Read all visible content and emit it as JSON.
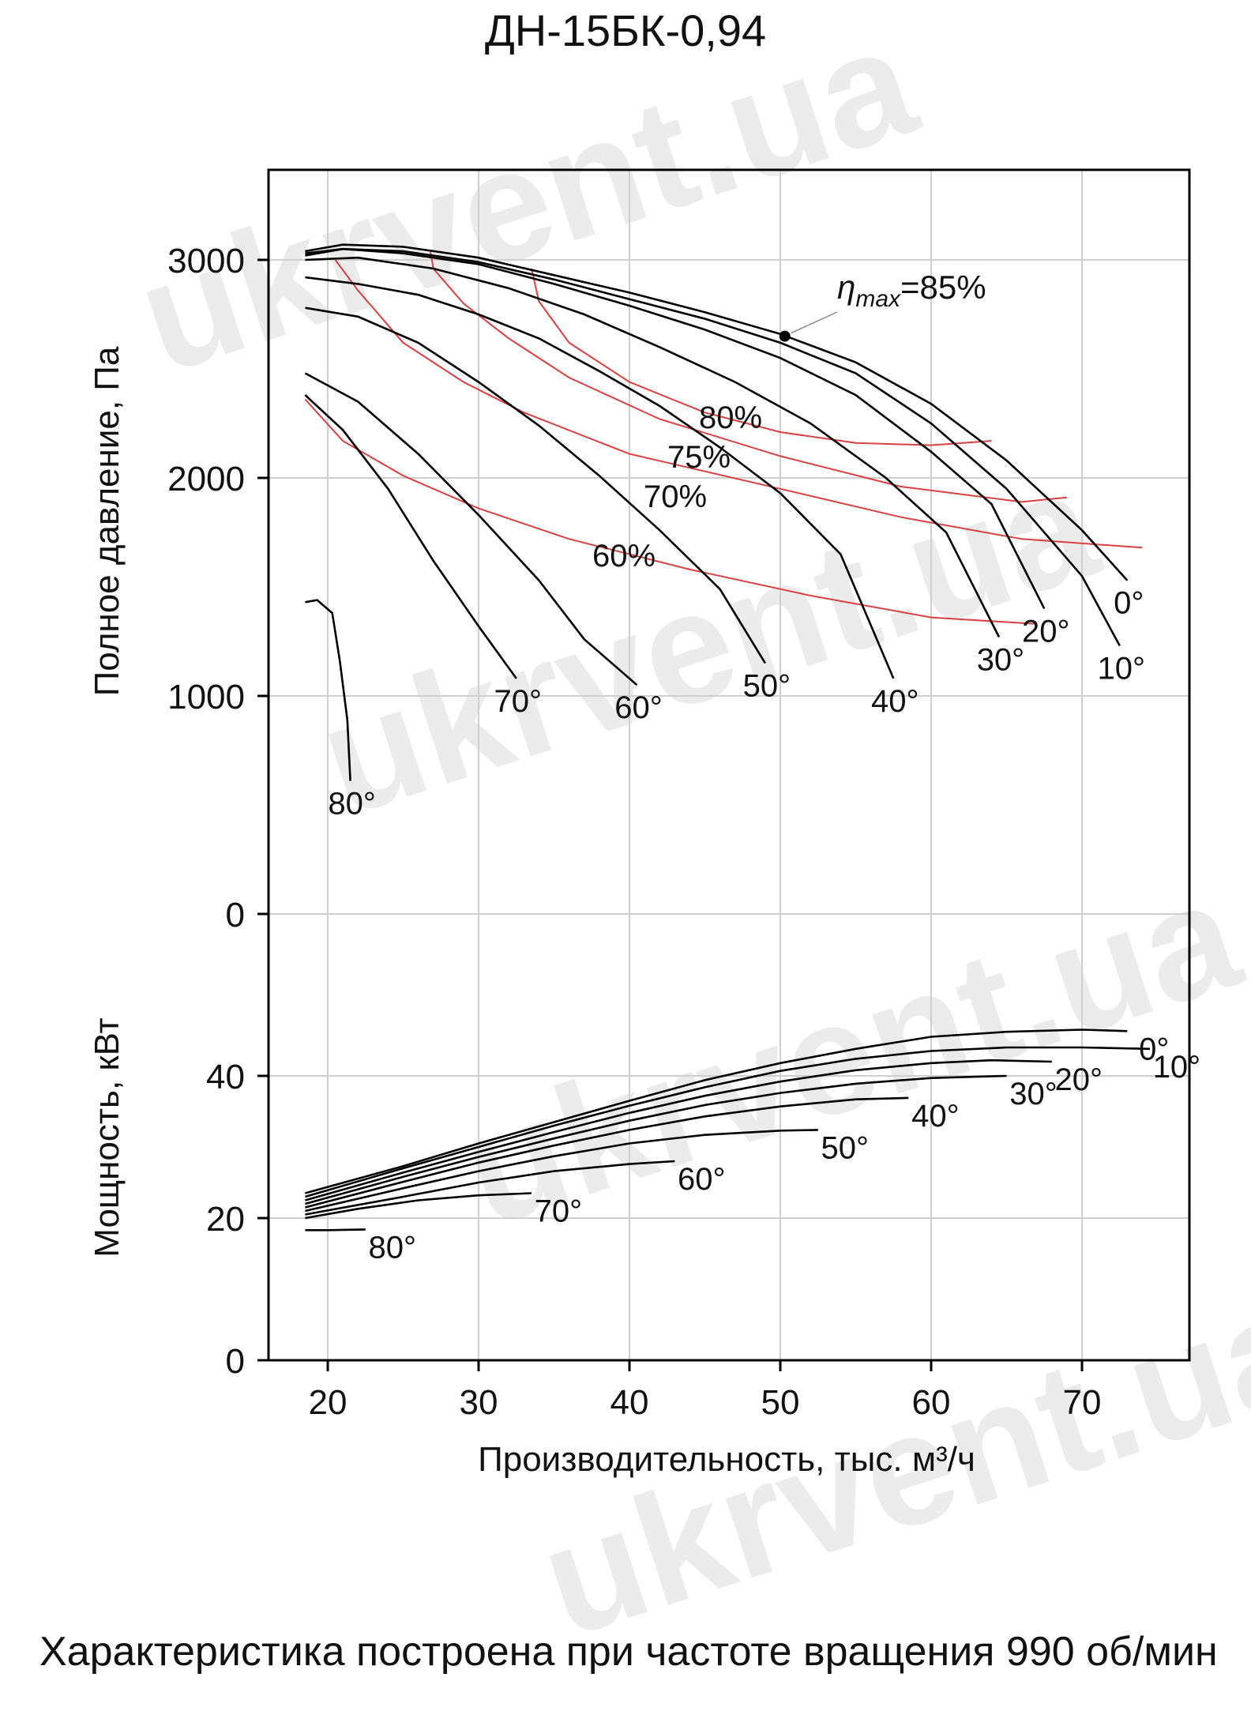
{
  "title": "ДН-15БК-0,94",
  "caption": "Характеристика построена при частоте вращения 990 об/мин",
  "watermark": "ukrvent.ua",
  "colors": {
    "curve": "#000000",
    "efficiency": "#d94040",
    "grid": "#cfcfcf",
    "watermark": "#ebebeb"
  },
  "chart_data": [
    {
      "type": "line",
      "title": "",
      "xlabel": "Производительность, тыс. м³/ч",
      "ylabel": "Полное давление, Па",
      "xlim": [
        15,
        77
      ],
      "ylim": [
        0,
        3400
      ],
      "xticks": [
        20,
        30,
        40,
        50,
        60,
        70
      ],
      "yticks": [
        0,
        1000,
        2000,
        3000
      ],
      "grid": true,
      "annotation": {
        "label": "ηmax=85%",
        "text": "=85%",
        "x": 50.3,
        "y": 2650
      },
      "series": [
        {
          "name": "0°",
          "points": [
            [
              18.5,
              3040
            ],
            [
              21,
              3070
            ],
            [
              25,
              3060
            ],
            [
              30,
              3010
            ],
            [
              35,
              2930
            ],
            [
              40,
              2850
            ],
            [
              45,
              2760
            ],
            [
              50,
              2660
            ],
            [
              55,
              2530
            ],
            [
              60,
              2340
            ],
            [
              65,
              2080
            ],
            [
              70,
              1760
            ],
            [
              73,
              1530
            ]
          ]
        },
        {
          "name": "10°",
          "points": [
            [
              18.5,
              3020
            ],
            [
              21,
              3050
            ],
            [
              25,
              3040
            ],
            [
              30,
              2990
            ],
            [
              35,
              2910
            ],
            [
              40,
              2820
            ],
            [
              45,
              2730
            ],
            [
              50,
              2620
            ],
            [
              55,
              2480
            ],
            [
              60,
              2250
            ],
            [
              65,
              1950
            ],
            [
              70,
              1550
            ],
            [
              72.5,
              1230
            ]
          ]
        },
        {
          "name": "20°",
          "points": [
            [
              18.5,
              3030
            ],
            [
              21,
              3050
            ],
            [
              25,
              3030
            ],
            [
              30,
              2980
            ],
            [
              35,
              2890
            ],
            [
              40,
              2790
            ],
            [
              45,
              2680
            ],
            [
              50,
              2550
            ],
            [
              55,
              2380
            ],
            [
              60,
              2120
            ],
            [
              64,
              1880
            ],
            [
              67.5,
              1400
            ]
          ]
        },
        {
          "name": "30°",
          "points": [
            [
              18.5,
              3000
            ],
            [
              22,
              3010
            ],
            [
              27,
              2960
            ],
            [
              32,
              2870
            ],
            [
              37,
              2750
            ],
            [
              42,
              2600
            ],
            [
              47,
              2440
            ],
            [
              52,
              2250
            ],
            [
              57,
              2000
            ],
            [
              61,
              1750
            ],
            [
              64.5,
              1270
            ]
          ]
        },
        {
          "name": "40°",
          "points": [
            [
              18.5,
              2920
            ],
            [
              22,
              2890
            ],
            [
              26,
              2840
            ],
            [
              30,
              2750
            ],
            [
              34,
              2640
            ],
            [
              38,
              2490
            ],
            [
              42,
              2330
            ],
            [
              46,
              2140
            ],
            [
              50,
              1930
            ],
            [
              54,
              1650
            ],
            [
              57.5,
              1080
            ]
          ]
        },
        {
          "name": "50°",
          "points": [
            [
              18.5,
              2780
            ],
            [
              22,
              2740
            ],
            [
              26,
              2620
            ],
            [
              30,
              2440
            ],
            [
              34,
              2240
            ],
            [
              38,
              2010
            ],
            [
              42,
              1760
            ],
            [
              46,
              1490
            ],
            [
              49,
              1150
            ]
          ]
        },
        {
          "name": "60°",
          "points": [
            [
              18.5,
              2480
            ],
            [
              22,
              2350
            ],
            [
              26,
              2110
            ],
            [
              30,
              1830
            ],
            [
              34,
              1530
            ],
            [
              37,
              1260
            ],
            [
              40.5,
              1050
            ]
          ]
        },
        {
          "name": "70°",
          "points": [
            [
              18.5,
              2380
            ],
            [
              21,
              2220
            ],
            [
              24,
              1950
            ],
            [
              27,
              1620
            ],
            [
              30,
              1320
            ],
            [
              32.5,
              1080
            ]
          ]
        },
        {
          "name": "80°",
          "points": [
            [
              18.5,
              1430
            ],
            [
              19.3,
              1440
            ],
            [
              20.3,
              1380
            ],
            [
              20.8,
              1160
            ],
            [
              21.3,
              890
            ],
            [
              21.5,
              610
            ]
          ]
        }
      ],
      "efficiency_lines": [
        {
          "name": "80%",
          "points": [
            [
              33.5,
              2960
            ],
            [
              34,
              2810
            ],
            [
              36,
              2620
            ],
            [
              40,
              2440
            ],
            [
              45,
              2300
            ],
            [
              50,
              2210
            ],
            [
              55,
              2160
            ],
            [
              60,
              2150
            ],
            [
              64,
              2170
            ]
          ]
        },
        {
          "name": "75%",
          "points": [
            [
              26.8,
              3040
            ],
            [
              27,
              2960
            ],
            [
              29,
              2800
            ],
            [
              32,
              2640
            ],
            [
              36,
              2460
            ],
            [
              42,
              2270
            ],
            [
              50,
              2100
            ],
            [
              58,
              1960
            ],
            [
              66,
              1890
            ],
            [
              69,
              1910
            ]
          ]
        },
        {
          "name": "70%",
          "points": [
            [
              20.5,
              3000
            ],
            [
              22,
              2860
            ],
            [
              25,
              2620
            ],
            [
              29,
              2440
            ],
            [
              33,
              2300
            ],
            [
              40,
              2110
            ],
            [
              50,
              1950
            ],
            [
              58,
              1820
            ],
            [
              66,
              1720
            ],
            [
              74,
              1680
            ]
          ]
        },
        {
          "name": "60%",
          "points": [
            [
              18.5,
              2360
            ],
            [
              21,
              2170
            ],
            [
              25,
              2010
            ],
            [
              30,
              1860
            ],
            [
              36,
              1720
            ],
            [
              44,
              1580
            ],
            [
              52,
              1460
            ],
            [
              60,
              1360
            ],
            [
              67,
              1330
            ]
          ]
        }
      ]
    },
    {
      "type": "line",
      "title": "",
      "xlabel": "Производительность, тыс. м³/ч",
      "ylabel": "Мощность, кВт",
      "xlim": [
        15,
        77
      ],
      "ylim": [
        0,
        52
      ],
      "yticks": [
        0,
        20,
        40
      ],
      "grid": true,
      "series": [
        {
          "name": "0°",
          "points": [
            [
              18.5,
              23.5
            ],
            [
              25,
              27.3
            ],
            [
              30,
              30.5
            ],
            [
              35,
              33.5
            ],
            [
              40,
              36.5
            ],
            [
              45,
              39.4
            ],
            [
              50,
              41.8
            ],
            [
              55,
              43.8
            ],
            [
              60,
              45.5
            ],
            [
              65,
              46.2
            ],
            [
              70,
              46.5
            ],
            [
              73,
              46.3
            ]
          ]
        },
        {
          "name": "10°",
          "points": [
            [
              18.5,
              23
            ],
            [
              25,
              27
            ],
            [
              30,
              30
            ],
            [
              35,
              33
            ],
            [
              40,
              35.8
            ],
            [
              45,
              38.4
            ],
            [
              50,
              40.7
            ],
            [
              55,
              42.4
            ],
            [
              60,
              43.5
            ],
            [
              65,
              44
            ],
            [
              70,
              44
            ],
            [
              74.5,
              43.8
            ]
          ]
        },
        {
          "name": "20°",
          "points": [
            [
              18.5,
              22.5
            ],
            [
              25,
              26.4
            ],
            [
              30,
              29.3
            ],
            [
              35,
              32.1
            ],
            [
              40,
              34.8
            ],
            [
              45,
              37.2
            ],
            [
              50,
              39.2
            ],
            [
              55,
              40.8
            ],
            [
              60,
              41.8
            ],
            [
              64,
              42.2
            ],
            [
              68,
              42
            ]
          ]
        },
        {
          "name": "30°",
          "points": [
            [
              18.5,
              22
            ],
            [
              25,
              25.8
            ],
            [
              30,
              28.6
            ],
            [
              35,
              31.2
            ],
            [
              40,
              33.7
            ],
            [
              45,
              35.9
            ],
            [
              50,
              37.6
            ],
            [
              55,
              38.9
            ],
            [
              60,
              39.7
            ],
            [
              65,
              40
            ]
          ]
        },
        {
          "name": "40°",
          "points": [
            [
              18.5,
              21.5
            ],
            [
              25,
              25.1
            ],
            [
              30,
              27.8
            ],
            [
              35,
              30.2
            ],
            [
              40,
              32.4
            ],
            [
              45,
              34.3
            ],
            [
              50,
              35.7
            ],
            [
              55,
              36.7
            ],
            [
              58.5,
              36.9
            ]
          ]
        },
        {
          "name": "50°",
          "points": [
            [
              18.5,
              21
            ],
            [
              25,
              24.2
            ],
            [
              30,
              26.6
            ],
            [
              35,
              28.7
            ],
            [
              40,
              30.5
            ],
            [
              45,
              31.7
            ],
            [
              50,
              32.3
            ],
            [
              52.5,
              32.4
            ]
          ]
        },
        {
          "name": "60°",
          "points": [
            [
              18.5,
              20.5
            ],
            [
              25,
              23
            ],
            [
              30,
              25
            ],
            [
              35,
              26.6
            ],
            [
              40,
              27.6
            ],
            [
              43,
              28
            ]
          ]
        },
        {
          "name": "70°",
          "points": [
            [
              18.5,
              20
            ],
            [
              22,
              21.3
            ],
            [
              26,
              22.5
            ],
            [
              30,
              23.2
            ],
            [
              33.5,
              23.5
            ]
          ]
        },
        {
          "name": "80°",
          "points": [
            [
              18.5,
              18.3
            ],
            [
              20,
              18.3
            ],
            [
              22.5,
              18.4
            ]
          ]
        }
      ]
    }
  ]
}
